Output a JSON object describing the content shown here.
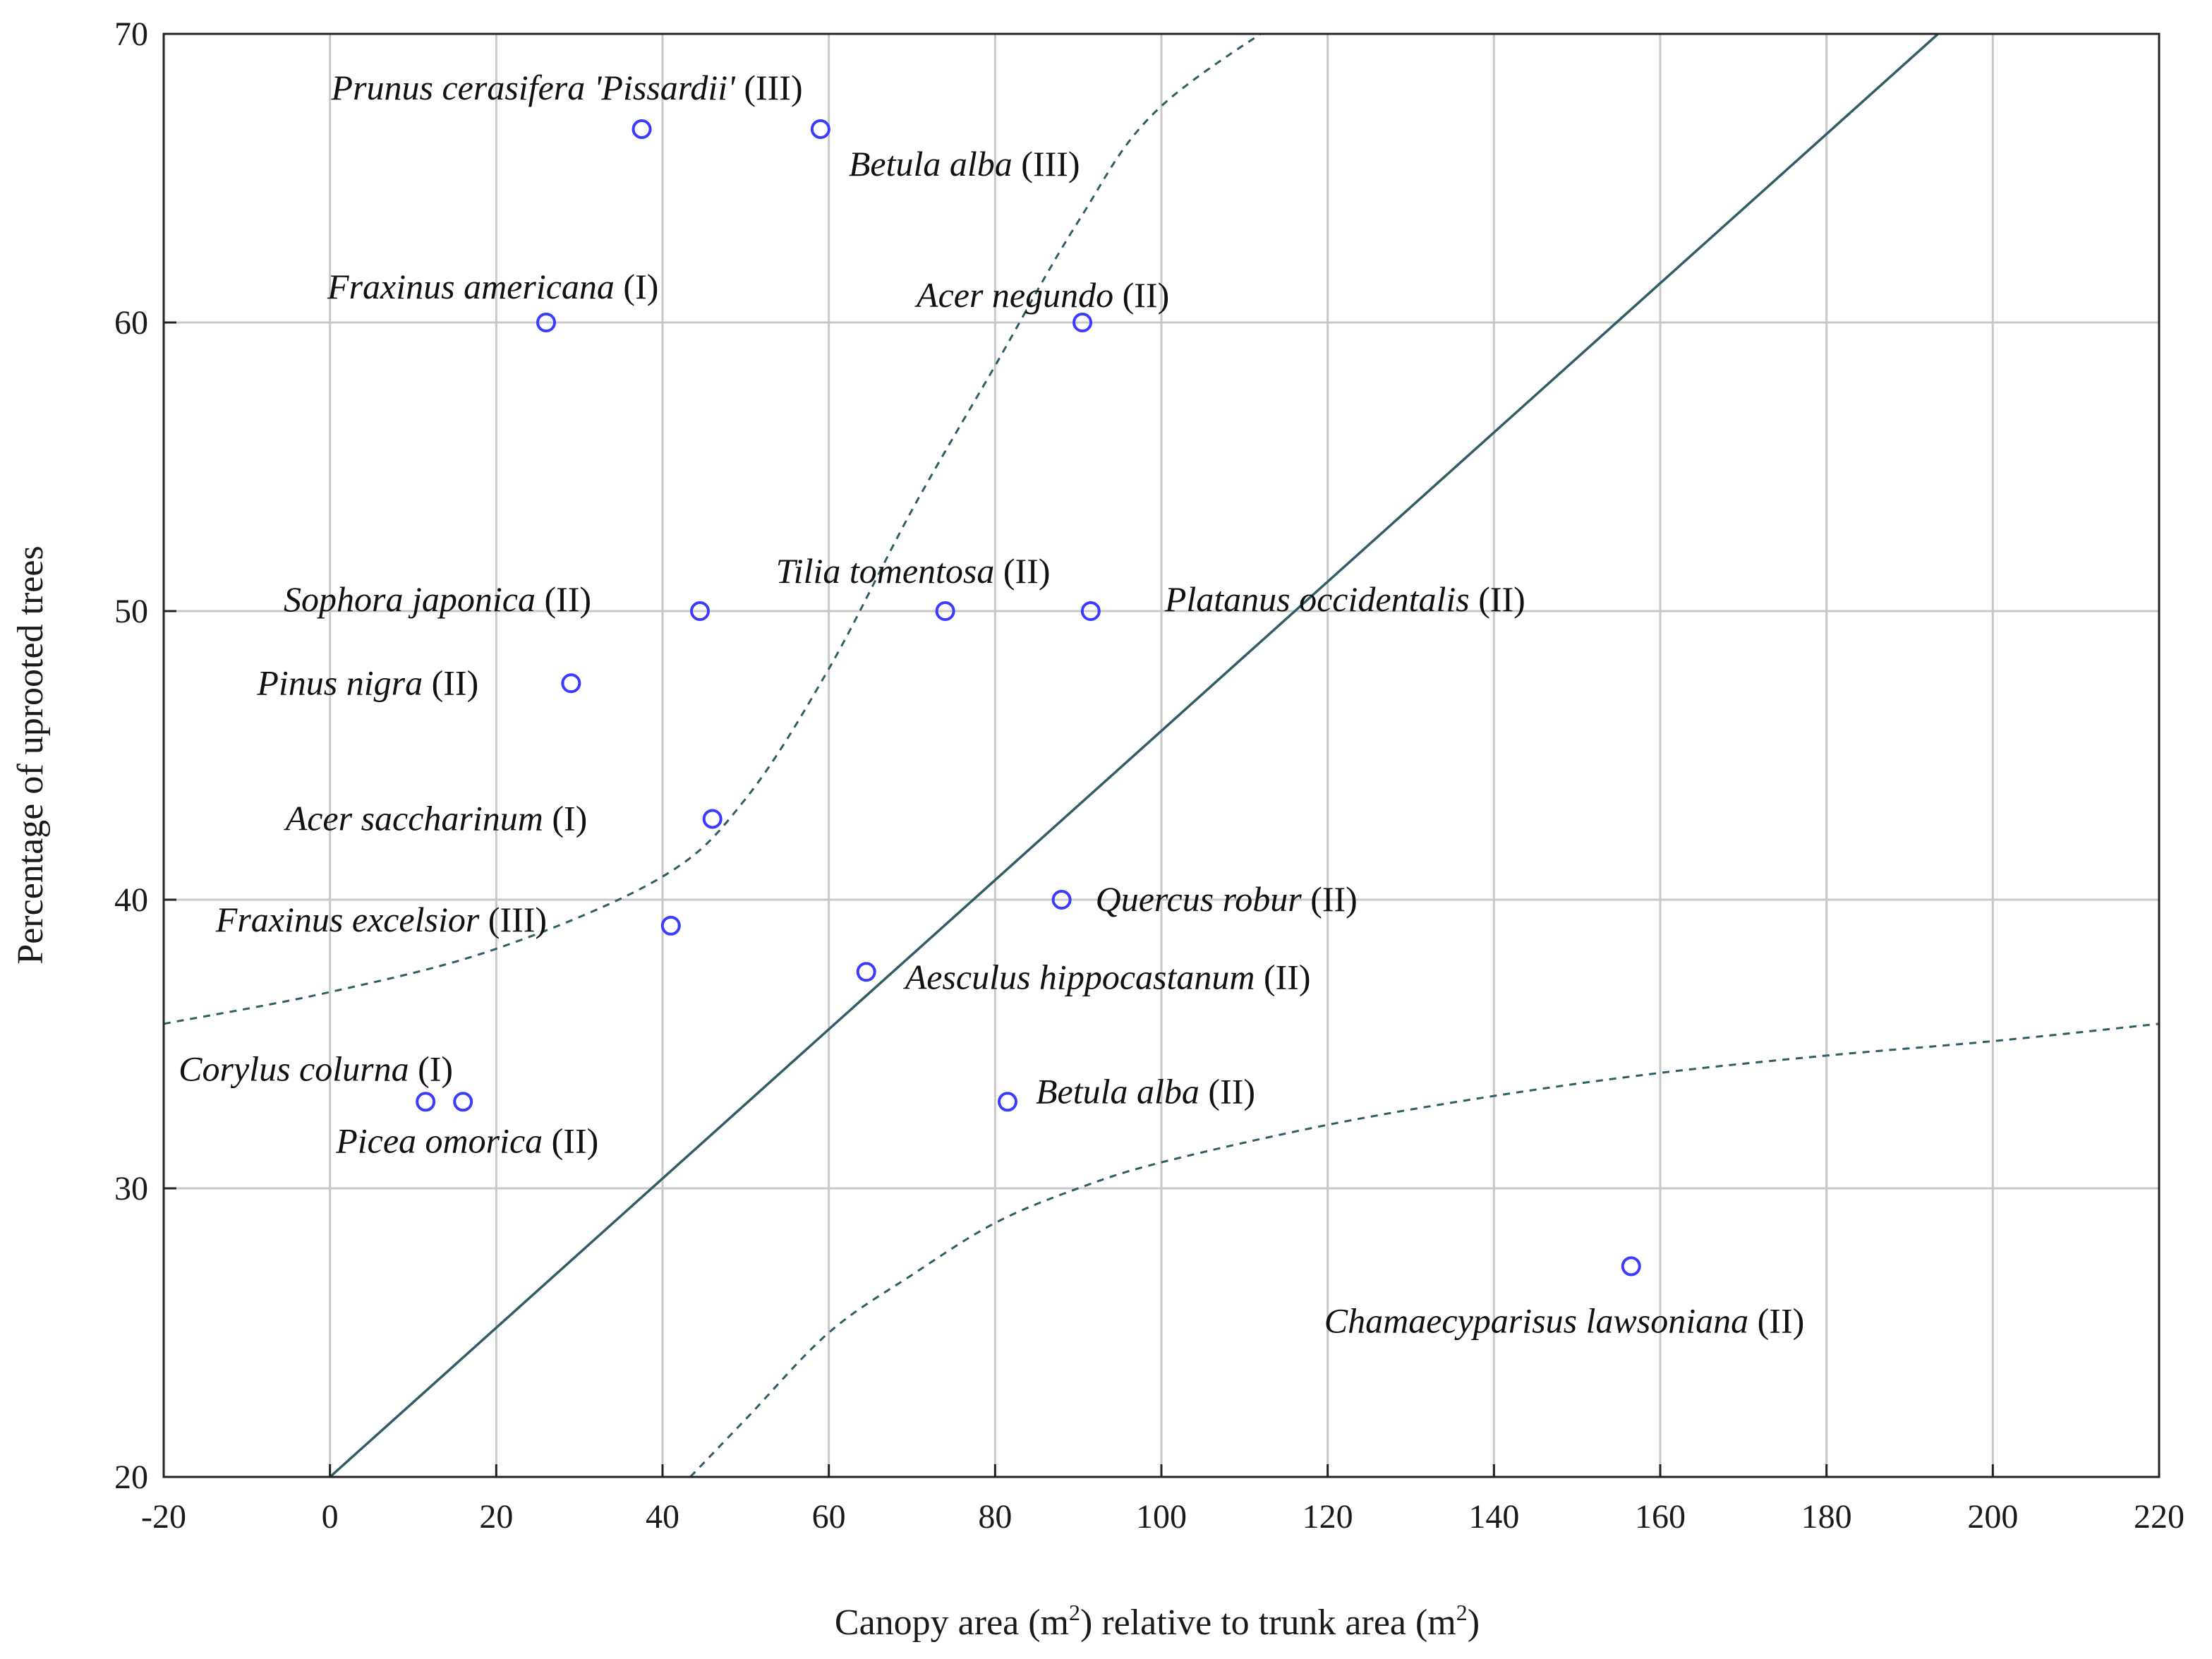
{
  "colors": {
    "grid": "#c8c8c8",
    "frame": "#222222",
    "marker": "#3b3bff",
    "fit_line": "#2f5d66",
    "text": "#1a1a1a"
  },
  "chart_data": {
    "type": "scatter",
    "title": "",
    "xlabel_pre": "Canopy area (m",
    "xlabel_sup1": "2",
    "xlabel_mid": ") relative to trunk area (m",
    "xlabel_sup2": "2",
    "xlabel_post": ")",
    "ylabel": "Percentage of uprooted trees",
    "xlim": [
      -20,
      220
    ],
    "ylim": [
      20,
      70
    ],
    "xticks": [
      -20,
      0,
      20,
      40,
      60,
      80,
      100,
      120,
      140,
      160,
      180,
      200,
      220
    ],
    "yticks": [
      20,
      30,
      40,
      50,
      60,
      70
    ],
    "grid": true,
    "fit_line": {
      "slope": 0.2585,
      "intercept": 20.0
    },
    "confidence_band_upper": [
      [
        -20,
        35.7
      ],
      [
        0,
        36.8
      ],
      [
        20,
        38.3
      ],
      [
        40,
        40.8
      ],
      [
        50,
        43.5
      ],
      [
        60,
        48.0
      ],
      [
        70,
        53.5
      ],
      [
        80,
        58.5
      ],
      [
        90,
        63.5
      ],
      [
        100,
        67.5
      ],
      [
        120,
        71.5
      ]
    ],
    "confidence_band_lower": [
      [
        40,
        19.0
      ],
      [
        50,
        22.0
      ],
      [
        60,
        25.0
      ],
      [
        70,
        27.0
      ],
      [
        80,
        28.8
      ],
      [
        90,
        30.0
      ],
      [
        100,
        30.9
      ],
      [
        120,
        32.2
      ],
      [
        140,
        33.2
      ],
      [
        160,
        34.0
      ],
      [
        180,
        34.6
      ],
      [
        200,
        35.1
      ],
      [
        220,
        35.7
      ]
    ],
    "points": [
      {
        "x": 37.5,
        "y": 66.7,
        "species": "Prunus cerasifera 'Pissardii'",
        "group": "(III)"
      },
      {
        "x": 59,
        "y": 66.7,
        "species": "Betula alba",
        "group": "(III)"
      },
      {
        "x": 26,
        "y": 60,
        "species": "Fraxinus americana",
        "group": "(I)"
      },
      {
        "x": 90.5,
        "y": 60,
        "species": "Acer negundo",
        "group": "(II)"
      },
      {
        "x": 44.5,
        "y": 50,
        "species": "Sophora japonica",
        "group": "(II)"
      },
      {
        "x": 74,
        "y": 50,
        "species": "Tilia tomentosa",
        "group": "(II)"
      },
      {
        "x": 91.5,
        "y": 50,
        "species": "Platanus occidentalis",
        "group": "(II)"
      },
      {
        "x": 29,
        "y": 47.5,
        "species": "Pinus nigra",
        "group": "(II)"
      },
      {
        "x": 46,
        "y": 42.8,
        "species": "Acer saccharinum",
        "group": "(I)"
      },
      {
        "x": 88,
        "y": 40,
        "species": "Quercus robur",
        "group": "(II)"
      },
      {
        "x": 41,
        "y": 39.1,
        "species": "Fraxinus excelsior",
        "group": "(III)"
      },
      {
        "x": 64.5,
        "y": 37.5,
        "species": "Aesculus hippocastanum",
        "group": "(II)"
      },
      {
        "x": 11.5,
        "y": 33,
        "species": "Corylus colurna",
        "group": "(I)"
      },
      {
        "x": 16,
        "y": 33,
        "species": "Picea omorica",
        "group": "(II)"
      },
      {
        "x": 81.5,
        "y": 33,
        "species": "Betula alba",
        "group": "(II)"
      },
      {
        "x": 156.5,
        "y": 27.3,
        "species": "Chamaecyparisus lawsoniana",
        "group": "(II)"
      }
    ]
  }
}
